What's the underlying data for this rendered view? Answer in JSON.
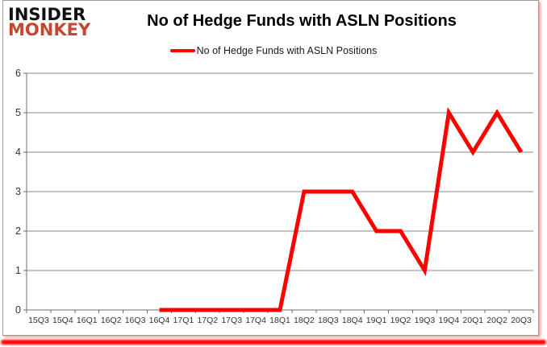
{
  "logo": {
    "line1": "INSIDER",
    "line2": "MONKEY",
    "line1_color": "#111111",
    "line2_color": "#c5472f"
  },
  "header": {
    "title": "No of Hedge Funds with ASLN Positions"
  },
  "legend": {
    "label": "No of Hedge Funds with ASLN Positions",
    "line_color": "#fe0000"
  },
  "colors": {
    "series_line": "#fe0000",
    "gridline": "#8a8a8a",
    "axis": "#6e6e6e",
    "tick_label": "#333333",
    "bottom_bar": "#ff0000",
    "panel_border": "#9a9a9a",
    "background": "#ffffff"
  },
  "chart_data": {
    "type": "line",
    "title": "No of Hedge Funds with ASLN Positions",
    "categories": [
      "15Q3",
      "15Q4",
      "16Q1",
      "16Q2",
      "16Q3",
      "16Q4",
      "17Q1",
      "17Q2",
      "17Q3",
      "17Q4",
      "18Q1",
      "18Q2",
      "18Q3",
      "18Q4",
      "19Q1",
      "19Q2",
      "19Q3",
      "19Q4",
      "20Q1",
      "20Q2",
      "20Q3"
    ],
    "series": [
      {
        "name": "No of Hedge Funds with ASLN Positions",
        "color": "#fe0000",
        "values": [
          null,
          null,
          null,
          null,
          null,
          0,
          0,
          0,
          0,
          0,
          0,
          3,
          3,
          3,
          2,
          2,
          1,
          5,
          4,
          5,
          4
        ]
      }
    ],
    "xlabel": "",
    "ylabel": "",
    "ylim": [
      0,
      6
    ],
    "yticks": [
      0,
      1,
      2,
      3,
      4,
      5,
      6
    ],
    "grid": true,
    "legend_position": "top-center"
  }
}
